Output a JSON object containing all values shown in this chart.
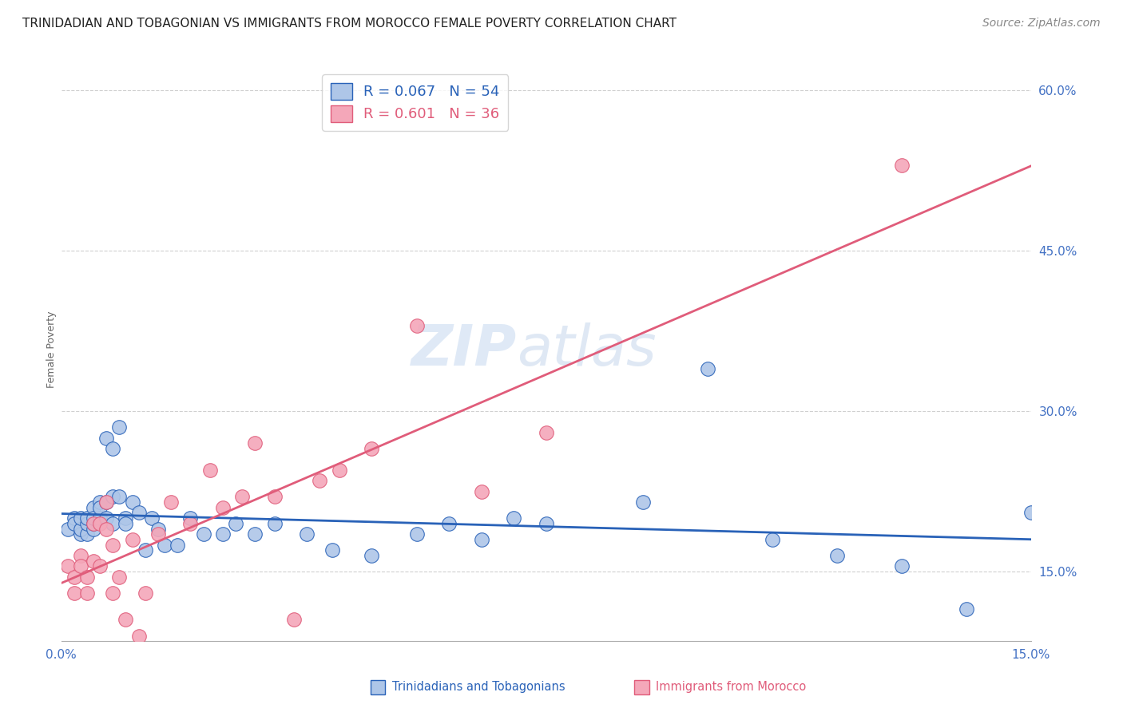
{
  "title": "TRINIDADIAN AND TOBAGONIAN VS IMMIGRANTS FROM MOROCCO FEMALE POVERTY CORRELATION CHART",
  "source": "Source: ZipAtlas.com",
  "ylabel": "Female Poverty",
  "xlim": [
    0.0,
    0.15
  ],
  "ylim": [
    0.085,
    0.63
  ],
  "yticks": [
    0.15,
    0.3,
    0.45,
    0.6
  ],
  "yticklabels": [
    "15.0%",
    "30.0%",
    "45.0%",
    "60.0%"
  ],
  "blue_R": 0.067,
  "blue_N": 54,
  "pink_R": 0.601,
  "pink_N": 36,
  "blue_color": "#aec6e8",
  "pink_color": "#f4a7b9",
  "blue_line_color": "#2962b8",
  "pink_line_color": "#e05c7a",
  "blue_label": "Trinidadians and Tobagonians",
  "pink_label": "Immigrants from Morocco",
  "watermark_zip": "ZIP",
  "watermark_atlas": "atlas",
  "grid_color": "#d0d0d0",
  "background_color": "#ffffff",
  "tick_color": "#4472c4",
  "title_fontsize": 11,
  "source_fontsize": 10,
  "axis_label_fontsize": 9,
  "tick_fontsize": 11,
  "legend_fontsize": 13,
  "watermark_fontsize": 52,
  "watermark_color": "#c5d8f0",
  "blue_x": [
    0.001,
    0.002,
    0.002,
    0.003,
    0.003,
    0.003,
    0.004,
    0.004,
    0.004,
    0.005,
    0.005,
    0.005,
    0.005,
    0.006,
    0.006,
    0.006,
    0.007,
    0.007,
    0.007,
    0.008,
    0.008,
    0.008,
    0.009,
    0.009,
    0.01,
    0.01,
    0.011,
    0.012,
    0.013,
    0.014,
    0.015,
    0.016,
    0.018,
    0.02,
    0.022,
    0.025,
    0.027,
    0.03,
    0.033,
    0.038,
    0.042,
    0.048,
    0.055,
    0.06,
    0.065,
    0.07,
    0.075,
    0.09,
    0.1,
    0.11,
    0.12,
    0.13,
    0.14,
    0.15
  ],
  "blue_y": [
    0.19,
    0.2,
    0.195,
    0.185,
    0.19,
    0.2,
    0.185,
    0.195,
    0.2,
    0.19,
    0.195,
    0.21,
    0.2,
    0.215,
    0.2,
    0.21,
    0.275,
    0.215,
    0.2,
    0.265,
    0.22,
    0.195,
    0.285,
    0.22,
    0.2,
    0.195,
    0.215,
    0.205,
    0.17,
    0.2,
    0.19,
    0.175,
    0.175,
    0.2,
    0.185,
    0.185,
    0.195,
    0.185,
    0.195,
    0.185,
    0.17,
    0.165,
    0.185,
    0.195,
    0.18,
    0.2,
    0.195,
    0.215,
    0.34,
    0.18,
    0.165,
    0.155,
    0.115,
    0.205
  ],
  "pink_x": [
    0.001,
    0.002,
    0.002,
    0.003,
    0.003,
    0.004,
    0.004,
    0.005,
    0.005,
    0.006,
    0.006,
    0.007,
    0.007,
    0.008,
    0.008,
    0.009,
    0.01,
    0.011,
    0.012,
    0.013,
    0.015,
    0.017,
    0.02,
    0.023,
    0.025,
    0.028,
    0.03,
    0.033,
    0.036,
    0.04,
    0.043,
    0.048,
    0.055,
    0.065,
    0.075,
    0.13
  ],
  "pink_y": [
    0.155,
    0.13,
    0.145,
    0.165,
    0.155,
    0.13,
    0.145,
    0.16,
    0.195,
    0.155,
    0.195,
    0.215,
    0.19,
    0.175,
    0.13,
    0.145,
    0.105,
    0.18,
    0.09,
    0.13,
    0.185,
    0.215,
    0.195,
    0.245,
    0.21,
    0.22,
    0.27,
    0.22,
    0.105,
    0.235,
    0.245,
    0.265,
    0.38,
    0.225,
    0.28,
    0.53
  ]
}
